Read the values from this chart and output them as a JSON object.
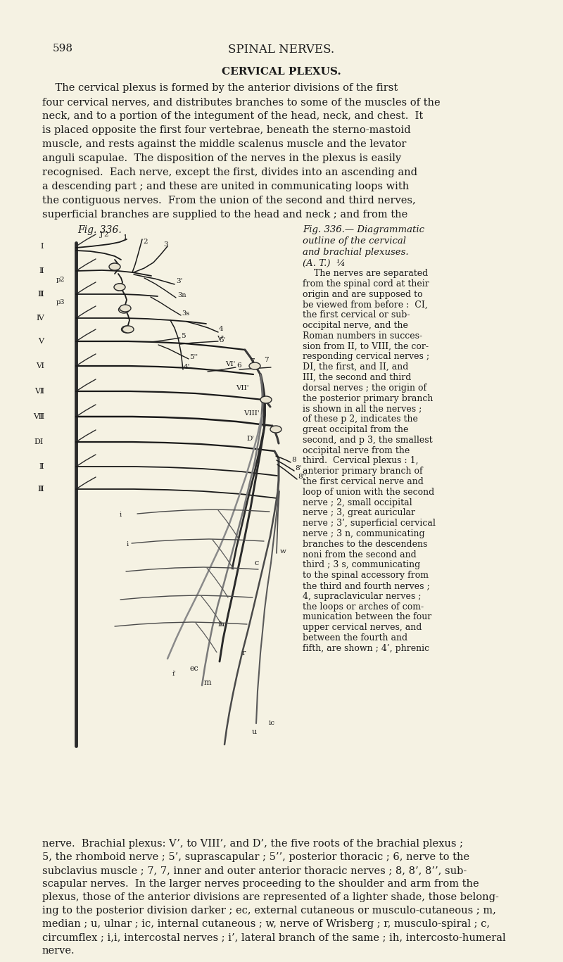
{
  "background_color": "#f5f2e3",
  "page_number": "598",
  "header_title": "SPINAL NERVES.",
  "section_title": "CERVICAL PLEXUS.",
  "body_text_left": "    The cervical plexus is formed by the anterior divisions of the first\nfour cervical nerves, and distributes branches to some of the muscles of the\nneck, and to a portion of the integument of the head, neck, and chest.  It\nis placed opposite the first four vertebrae, beneath the sterno-mastoid\nmuscle, and rests against the middle scalenus muscle and the levator\nanguli scapulae.  The disposition of the nerves in the plexus is easily\nrecognised.  Each nerve, except the first, divides into an ascending and\na descending part ; and these are united in communicating loops with\nthe contiguous nerves.  From the union of the second and third nerves,\nsuperficial branches are supplied to the head and neck ; and from the",
  "fig_label_left": "Fig. 336.",
  "fig_label_right": "Fig. 336.— Diagrammatic\noutline of the cervical\nand brachial plexuses.\n(A. T.)  ¼",
  "caption_right": "    The nerves are separated\nfrom the spinal cord at their\norigin and are supposed to\nbe viewed from before :  CI,\nthe first cervical or sub-\noccipital nerve, and the\nRoman numbers in succes-\nsion from II, to VIII, the cor-\nresponding cervical nerves ;\nDI, the first, and II, and\nIII, the second and third\ndorsal nerves ; the origin of\nthe posterior primary branch\nis shown in all the nerves ;\nof these p 2, indicates the\ngreat occipital from the\nsecond, and p 3, the smallest\noccipital nerve from the\nthird.  Cervical plexus : 1,\nanterior primary branch of\nthe first cervical nerve and\nloop of union with the second\nnerve ; 2, small occipital\nnerve ; 3, great auricular\nnerve ; 3’, superficial cervical\nnerve ; 3 n, communicating\nbranches to the descendens\nnoni from the second and\nthird ; 3 s, communicating\nto the spinal accessory from\nthe third and fourth nerves ;\n4, supraclavicular nerves ;\nthe loops or arches of com-\nmunication between the four\nupper cervical nerves, and\nbetween the fourth and\nfifth, are shown ; 4’, phrenic",
  "bottom_text": "nerve.  Brachial plexus: V’, to VIII’, and D’, the five roots of the brachial plexus ;\n5, the rhomboid nerve ; 5’, suprascapular ; 5’’, posterior thoracic ; 6, nerve to the\nsubclavius muscle ; 7, 7, inner and outer anterior thoracic nerves ; 8, 8’, 8’’, sub-\nscapular nerves.  In the larger nerves proceeding to the shoulder and arm from the\nplexus, those of the anterior divisions are represented of a lighter shade, those belong-\ning to the posterior division darker ; ec, external cutaneous or musculo-cutaneous ; m,\nmedian ; u, ulnar ; ic, internal cutaneous ; w, nerve of Wrisberg ; r, musculo-spiral ; c,\ncircumflex ; i,i, intercostal nerves ; i’, lateral branch of the same ; ih, intercosto-humeral\nnerve."
}
